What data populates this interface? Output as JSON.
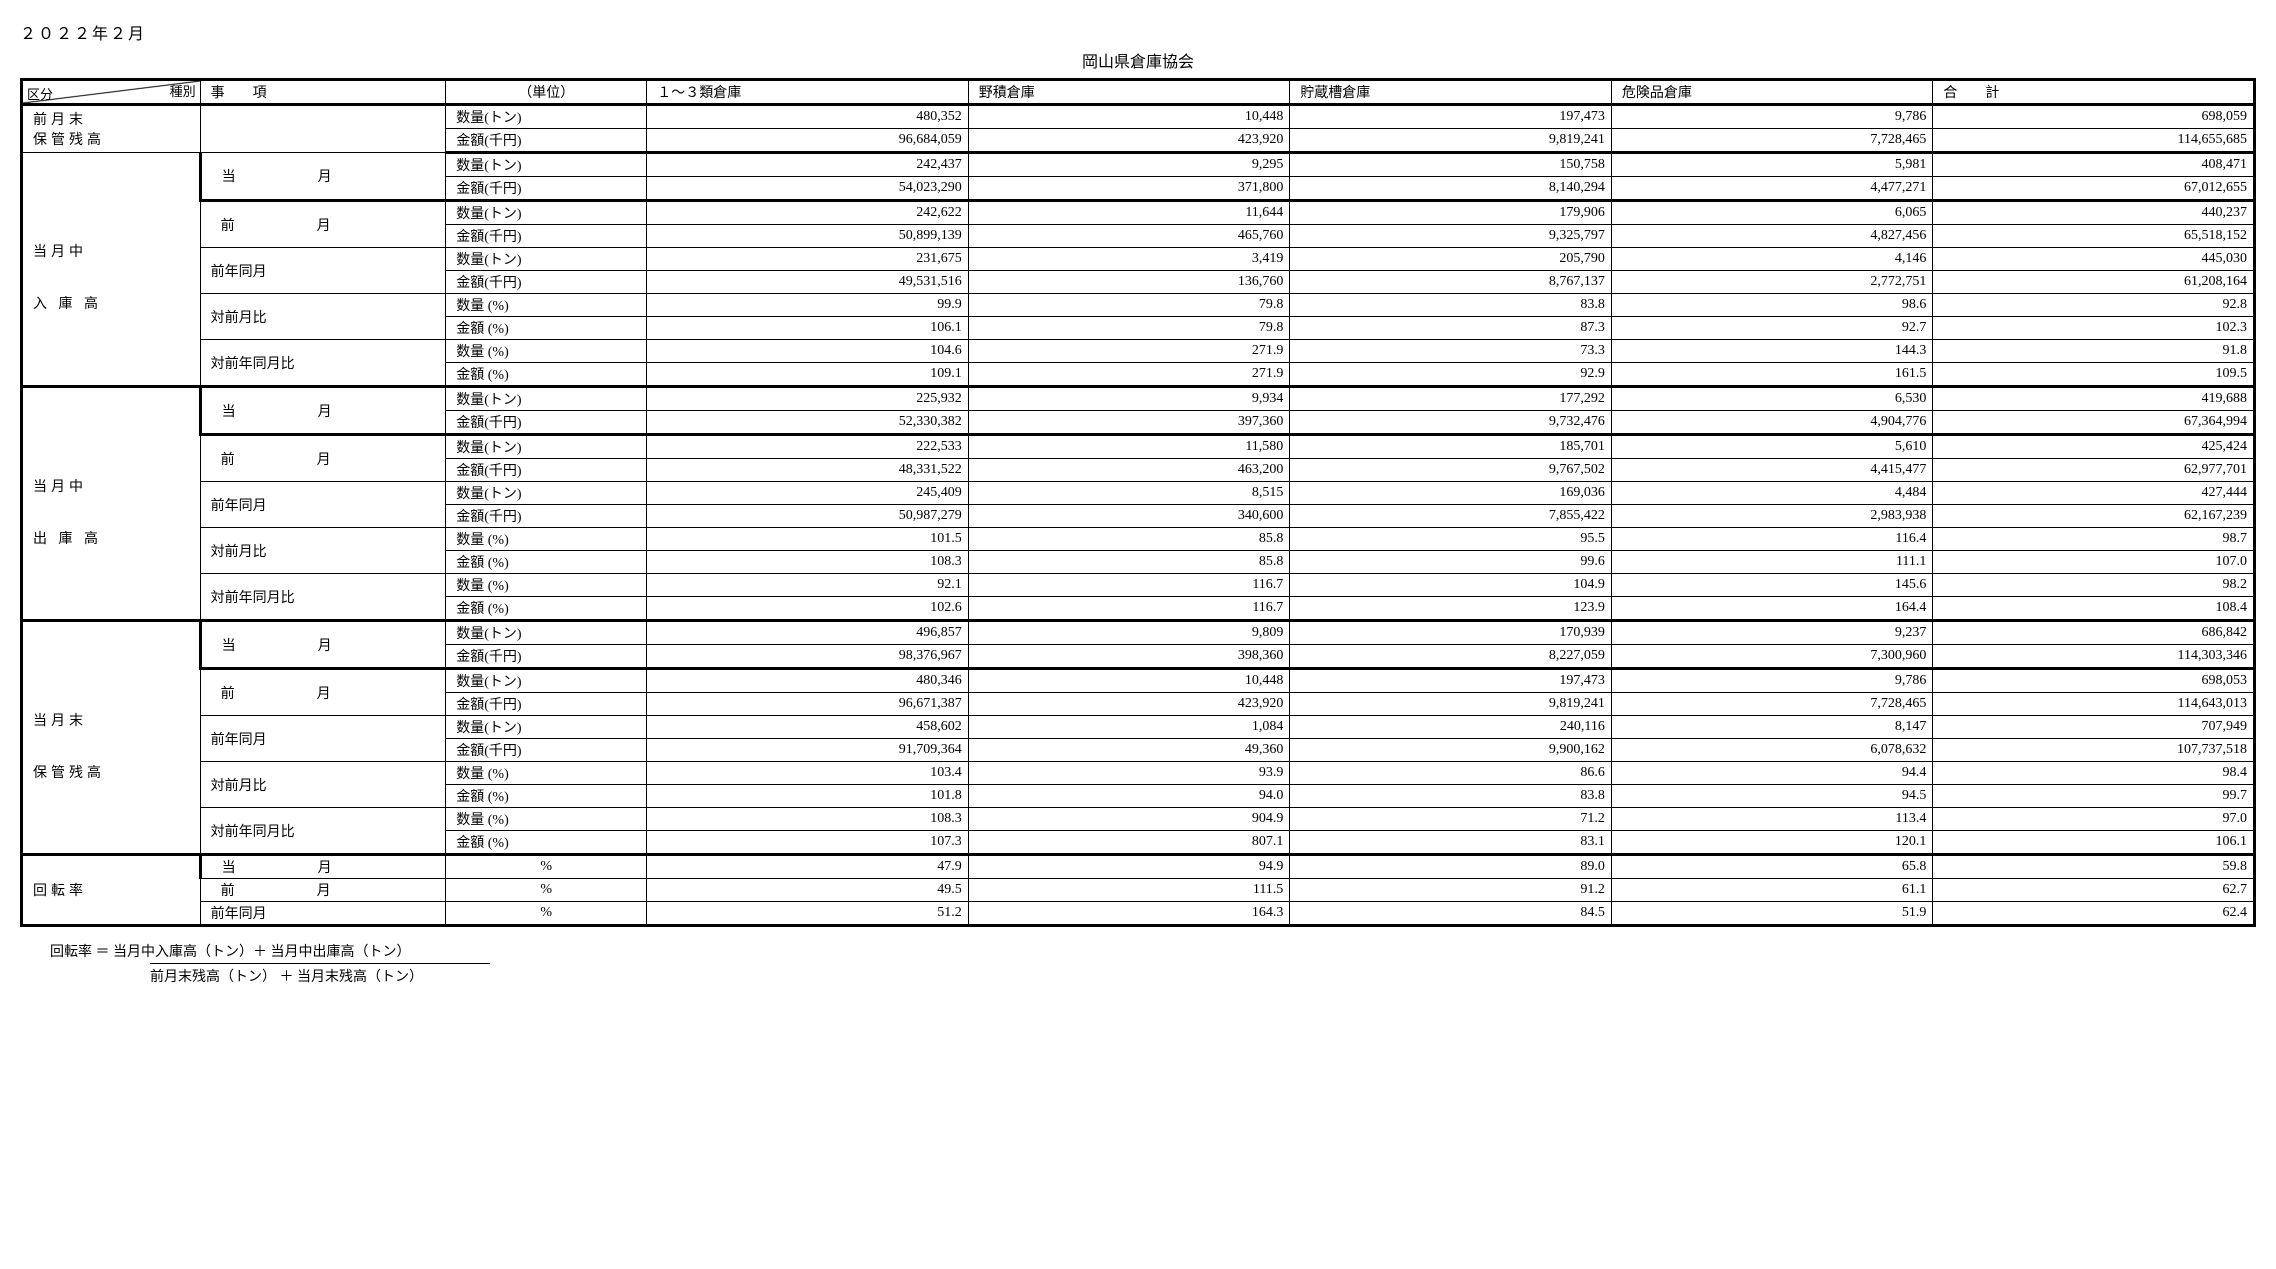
{
  "date": "２０２２年２月",
  "title": "岡山県倉庫協会",
  "header": {
    "diag_top": "種別",
    "diag_bot": "区分",
    "item": "事　　項",
    "unit": "（単位）",
    "cols": [
      "１～３類倉庫",
      "野積倉庫",
      "貯蔵槽倉庫",
      "危険品倉庫",
      "合　　計"
    ]
  },
  "units": {
    "qty_ton": "数量(トン)",
    "amt_yen": "金額(千円)",
    "qty_pct": "数量 (%)",
    "amt_pct": "金額 (%)",
    "pct": "%"
  },
  "labels": {
    "prev_end": "前月末\n保管残高",
    "incoming_mid": "当月中",
    "incoming": "入 庫 高",
    "outgoing_mid": "当月中",
    "outgoing": "出 庫 高",
    "month_end": "当月末",
    "balance": "保管残高",
    "turnover": "回転率",
    "this_month": "当　　月",
    "prev_month": "前　　月",
    "prev_year": "前年同月",
    "vs_prev_month": "対前月比",
    "vs_prev_year": "対前年同月比"
  },
  "prev_end_balance": {
    "qty": [
      "480,352",
      "10,448",
      "197,473",
      "9,786",
      "698,059"
    ],
    "amt": [
      "96,684,059",
      "423,920",
      "9,819,241",
      "7,728,465",
      "114,655,685"
    ]
  },
  "incoming": {
    "this_month": {
      "qty": [
        "242,437",
        "9,295",
        "150,758",
        "5,981",
        "408,471"
      ],
      "amt": [
        "54,023,290",
        "371,800",
        "8,140,294",
        "4,477,271",
        "67,012,655"
      ]
    },
    "prev_month": {
      "qty": [
        "242,622",
        "11,644",
        "179,906",
        "6,065",
        "440,237"
      ],
      "amt": [
        "50,899,139",
        "465,760",
        "9,325,797",
        "4,827,456",
        "65,518,152"
      ]
    },
    "prev_year": {
      "qty": [
        "231,675",
        "3,419",
        "205,790",
        "4,146",
        "445,030"
      ],
      "amt": [
        "49,531,516",
        "136,760",
        "8,767,137",
        "2,772,751",
        "61,208,164"
      ]
    },
    "vs_prev_m": {
      "qty": [
        "99.9",
        "79.8",
        "83.8",
        "98.6",
        "92.8"
      ],
      "amt": [
        "106.1",
        "79.8",
        "87.3",
        "92.7",
        "102.3"
      ]
    },
    "vs_prev_y": {
      "qty": [
        "104.6",
        "271.9",
        "73.3",
        "144.3",
        "91.8"
      ],
      "amt": [
        "109.1",
        "271.9",
        "92.9",
        "161.5",
        "109.5"
      ]
    }
  },
  "outgoing": {
    "this_month": {
      "qty": [
        "225,932",
        "9,934",
        "177,292",
        "6,530",
        "419,688"
      ],
      "amt": [
        "52,330,382",
        "397,360",
        "9,732,476",
        "4,904,776",
        "67,364,994"
      ]
    },
    "prev_month": {
      "qty": [
        "222,533",
        "11,580",
        "185,701",
        "5,610",
        "425,424"
      ],
      "amt": [
        "48,331,522",
        "463,200",
        "9,767,502",
        "4,415,477",
        "62,977,701"
      ]
    },
    "prev_year": {
      "qty": [
        "245,409",
        "8,515",
        "169,036",
        "4,484",
        "427,444"
      ],
      "amt": [
        "50,987,279",
        "340,600",
        "7,855,422",
        "2,983,938",
        "62,167,239"
      ]
    },
    "vs_prev_m": {
      "qty": [
        "101.5",
        "85.8",
        "95.5",
        "116.4",
        "98.7"
      ],
      "amt": [
        "108.3",
        "85.8",
        "99.6",
        "111.1",
        "107.0"
      ]
    },
    "vs_prev_y": {
      "qty": [
        "92.1",
        "116.7",
        "104.9",
        "145.6",
        "98.2"
      ],
      "amt": [
        "102.6",
        "116.7",
        "123.9",
        "164.4",
        "108.4"
      ]
    }
  },
  "month_end": {
    "this_month": {
      "qty": [
        "496,857",
        "9,809",
        "170,939",
        "9,237",
        "686,842"
      ],
      "amt": [
        "98,376,967",
        "398,360",
        "8,227,059",
        "7,300,960",
        "114,303,346"
      ]
    },
    "prev_month": {
      "qty": [
        "480,346",
        "10,448",
        "197,473",
        "9,786",
        "698,053"
      ],
      "amt": [
        "96,671,387",
        "423,920",
        "9,819,241",
        "7,728,465",
        "114,643,013"
      ]
    },
    "prev_year": {
      "qty": [
        "458,602",
        "1,084",
        "240,116",
        "8,147",
        "707,949"
      ],
      "amt": [
        "91,709,364",
        "49,360",
        "9,900,162",
        "6,078,632",
        "107,737,518"
      ]
    },
    "vs_prev_m": {
      "qty": [
        "103.4",
        "93.9",
        "86.6",
        "94.4",
        "98.4"
      ],
      "amt": [
        "101.8",
        "94.0",
        "83.8",
        "94.5",
        "99.7"
      ]
    },
    "vs_prev_y": {
      "qty": [
        "108.3",
        "904.9",
        "71.2",
        "113.4",
        "97.0"
      ],
      "amt": [
        "107.3",
        "807.1",
        "83.1",
        "120.1",
        "106.1"
      ]
    }
  },
  "turnover": {
    "this_month": [
      "47.9",
      "94.9",
      "89.0",
      "65.8",
      "59.8"
    ],
    "prev_month": [
      "49.5",
      "111.5",
      "91.2",
      "61.1",
      "62.7"
    ],
    "prev_year": [
      "51.2",
      "164.3",
      "84.5",
      "51.9",
      "62.4"
    ]
  },
  "formula": {
    "lead": "回転率 ＝",
    "top": "当月中入庫高（トン）＋ 当月中出庫高（トン）",
    "bot": "前月末残高（トン） ＋ 当月末残高（トン）"
  }
}
